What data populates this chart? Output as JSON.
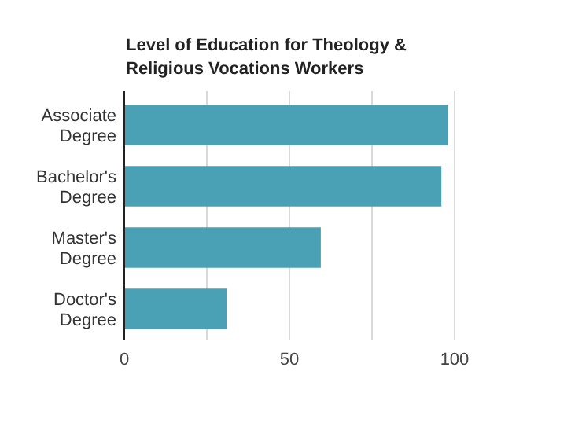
{
  "chart_data": {
    "type": "bar",
    "orientation": "horizontal",
    "title": "Level of Education for Theology & Religious Vocations Workers",
    "categories": [
      "Associate Degree",
      "Bachelor's Degree",
      "Master's Degree",
      "Doctor's Degree"
    ],
    "values": [
      98,
      96,
      59.5,
      31
    ],
    "color": "#4aa0b5",
    "xlim": [
      0,
      100
    ],
    "xticks": [
      0,
      {
        "value": 25,
        "label": null
      },
      50,
      {
        "value": 75,
        "label": null
      },
      100
    ],
    "grid": "x"
  }
}
